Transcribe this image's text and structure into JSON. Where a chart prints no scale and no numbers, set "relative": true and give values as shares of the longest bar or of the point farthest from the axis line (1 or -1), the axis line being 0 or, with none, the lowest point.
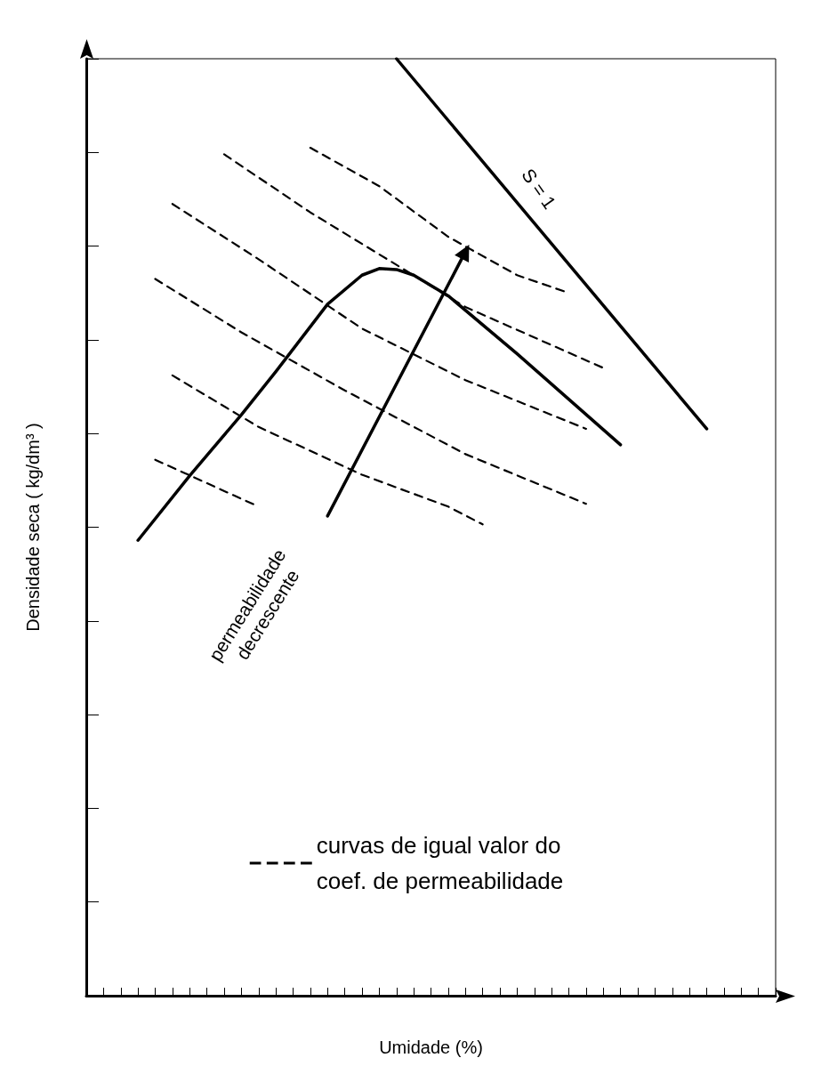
{
  "chart_data": {
    "type": "line",
    "relative": true,
    "xlabel": "Umidade (%)",
    "ylabel": "Densidade seca ( kg/dm³ )",
    "categories": [
      null,
      null,
      null,
      null,
      null,
      null,
      null,
      null,
      null,
      null,
      null,
      null,
      null,
      null,
      null,
      null,
      null,
      null,
      null,
      null,
      null,
      null,
      null,
      null,
      null,
      null,
      null,
      null,
      null,
      null,
      null,
      null,
      null,
      null,
      null,
      null,
      null,
      null,
      null,
      null,
      null
    ],
    "grid": false,
    "marker": "none",
    "legend": "bottom",
    "series": [
      {
        "color": "#000000",
        "line_style": "solid",
        "values": [
          null,
          null,
          null,
          null,
          null,
          null,
          null,
          null,
          null,
          null,
          null,
          null,
          null,
          null,
          null,
          null,
          null,
          null,
          1.0,
          null,
          null,
          null,
          null,
          null,
          null,
          null,
          null,
          null,
          null,
          null,
          null,
          null,
          null,
          null,
          null,
          null,
          0.605,
          null,
          null,
          null,
          null
        ]
      },
      {
        "color": "#000000",
        "line_style": "solid",
        "values": [
          null,
          null,
          null,
          0.486,
          null,
          null,
          0.555,
          null,
          null,
          0.62,
          null,
          0.666,
          null,
          null,
          0.738,
          null,
          0.769,
          0.776,
          0.775,
          0.769,
          null,
          0.747,
          null,
          null,
          null,
          0.685,
          null,
          null,
          null,
          null,
          null,
          0.588,
          null,
          null,
          null,
          null,
          null,
          null,
          null,
          null,
          null
        ]
      },
      {
        "color": "#000000",
        "line_style": "dashed",
        "name": "curvas de igual valor do coef. de permeabilidade",
        "values": [
          null,
          null,
          null,
          null,
          null,
          null,
          null,
          null,
          null,
          null,
          null,
          null,
          null,
          0.905,
          null,
          null,
          null,
          0.864,
          null,
          null,
          null,
          0.81,
          null,
          null,
          null,
          0.769,
          null,
          null,
          0.75,
          null,
          null,
          null,
          null,
          null,
          null,
          null,
          null,
          null,
          null,
          null,
          null
        ]
      },
      {
        "color": "#000000",
        "line_style": "dashed",
        "values": [
          null,
          null,
          null,
          null,
          null,
          null,
          null,
          null,
          0.898,
          null,
          null,
          null,
          null,
          0.836,
          null,
          null,
          null,
          null,
          0.78,
          null,
          null,
          null,
          0.735,
          null,
          null,
          null,
          null,
          null,
          null,
          null,
          0.67,
          null,
          null,
          null,
          null,
          null,
          null,
          null,
          null,
          null,
          null
        ]
      },
      {
        "color": "#000000",
        "line_style": "dashed",
        "values": [
          null,
          null,
          null,
          null,
          null,
          0.845,
          null,
          null,
          null,
          null,
          0.786,
          null,
          null,
          null,
          null,
          null,
          0.712,
          null,
          null,
          null,
          null,
          null,
          0.657,
          null,
          null,
          null,
          null,
          null,
          null,
          0.605,
          null,
          null,
          null,
          null,
          null,
          null,
          null,
          null,
          null,
          null,
          null
        ]
      },
      {
        "color": "#000000",
        "line_style": "dashed",
        "values": [
          null,
          null,
          null,
          null,
          0.765,
          null,
          null,
          null,
          null,
          0.708,
          null,
          null,
          null,
          null,
          null,
          0.646,
          null,
          null,
          null,
          null,
          null,
          null,
          0.578,
          null,
          null,
          null,
          null,
          null,
          null,
          0.525,
          null,
          null,
          null,
          null,
          null,
          null,
          null,
          null,
          null,
          null,
          null
        ]
      },
      {
        "color": "#000000",
        "line_style": "dashed",
        "values": [
          null,
          null,
          null,
          null,
          null,
          0.662,
          null,
          null,
          null,
          null,
          0.607,
          null,
          null,
          null,
          null,
          null,
          0.556,
          null,
          null,
          null,
          null,
          0.522,
          null,
          0.503,
          null,
          null,
          null,
          null,
          null,
          null,
          null,
          null,
          null,
          null,
          null,
          null,
          null,
          null,
          null,
          null,
          null
        ]
      },
      {
        "color": "#000000",
        "line_style": "dashed",
        "values": [
          null,
          null,
          null,
          null,
          0.572,
          null,
          null,
          null,
          null,
          null,
          0.522,
          null,
          null,
          null,
          null,
          null,
          null,
          null,
          null,
          null,
          null,
          null,
          null,
          null,
          null,
          null,
          null,
          null,
          null,
          null,
          null,
          null,
          null,
          null,
          null,
          null,
          null,
          null,
          null,
          null,
          null
        ]
      },
      {
        "color": "#000000",
        "line_style": "solid",
        "marker": "triangle",
        "values": [
          null,
          null,
          null,
          null,
          null,
          null,
          null,
          null,
          null,
          null,
          null,
          null,
          null,
          null,
          0.512,
          null,
          null,
          null,
          null,
          null,
          null,
          null,
          0.794,
          null,
          null,
          null,
          null,
          null,
          null,
          null,
          null,
          null,
          null,
          null,
          null,
          null,
          null,
          null,
          null,
          null,
          null
        ]
      }
    ],
    "annotations": [
      "S = 1",
      "permeabilidade decrescente"
    ]
  }
}
